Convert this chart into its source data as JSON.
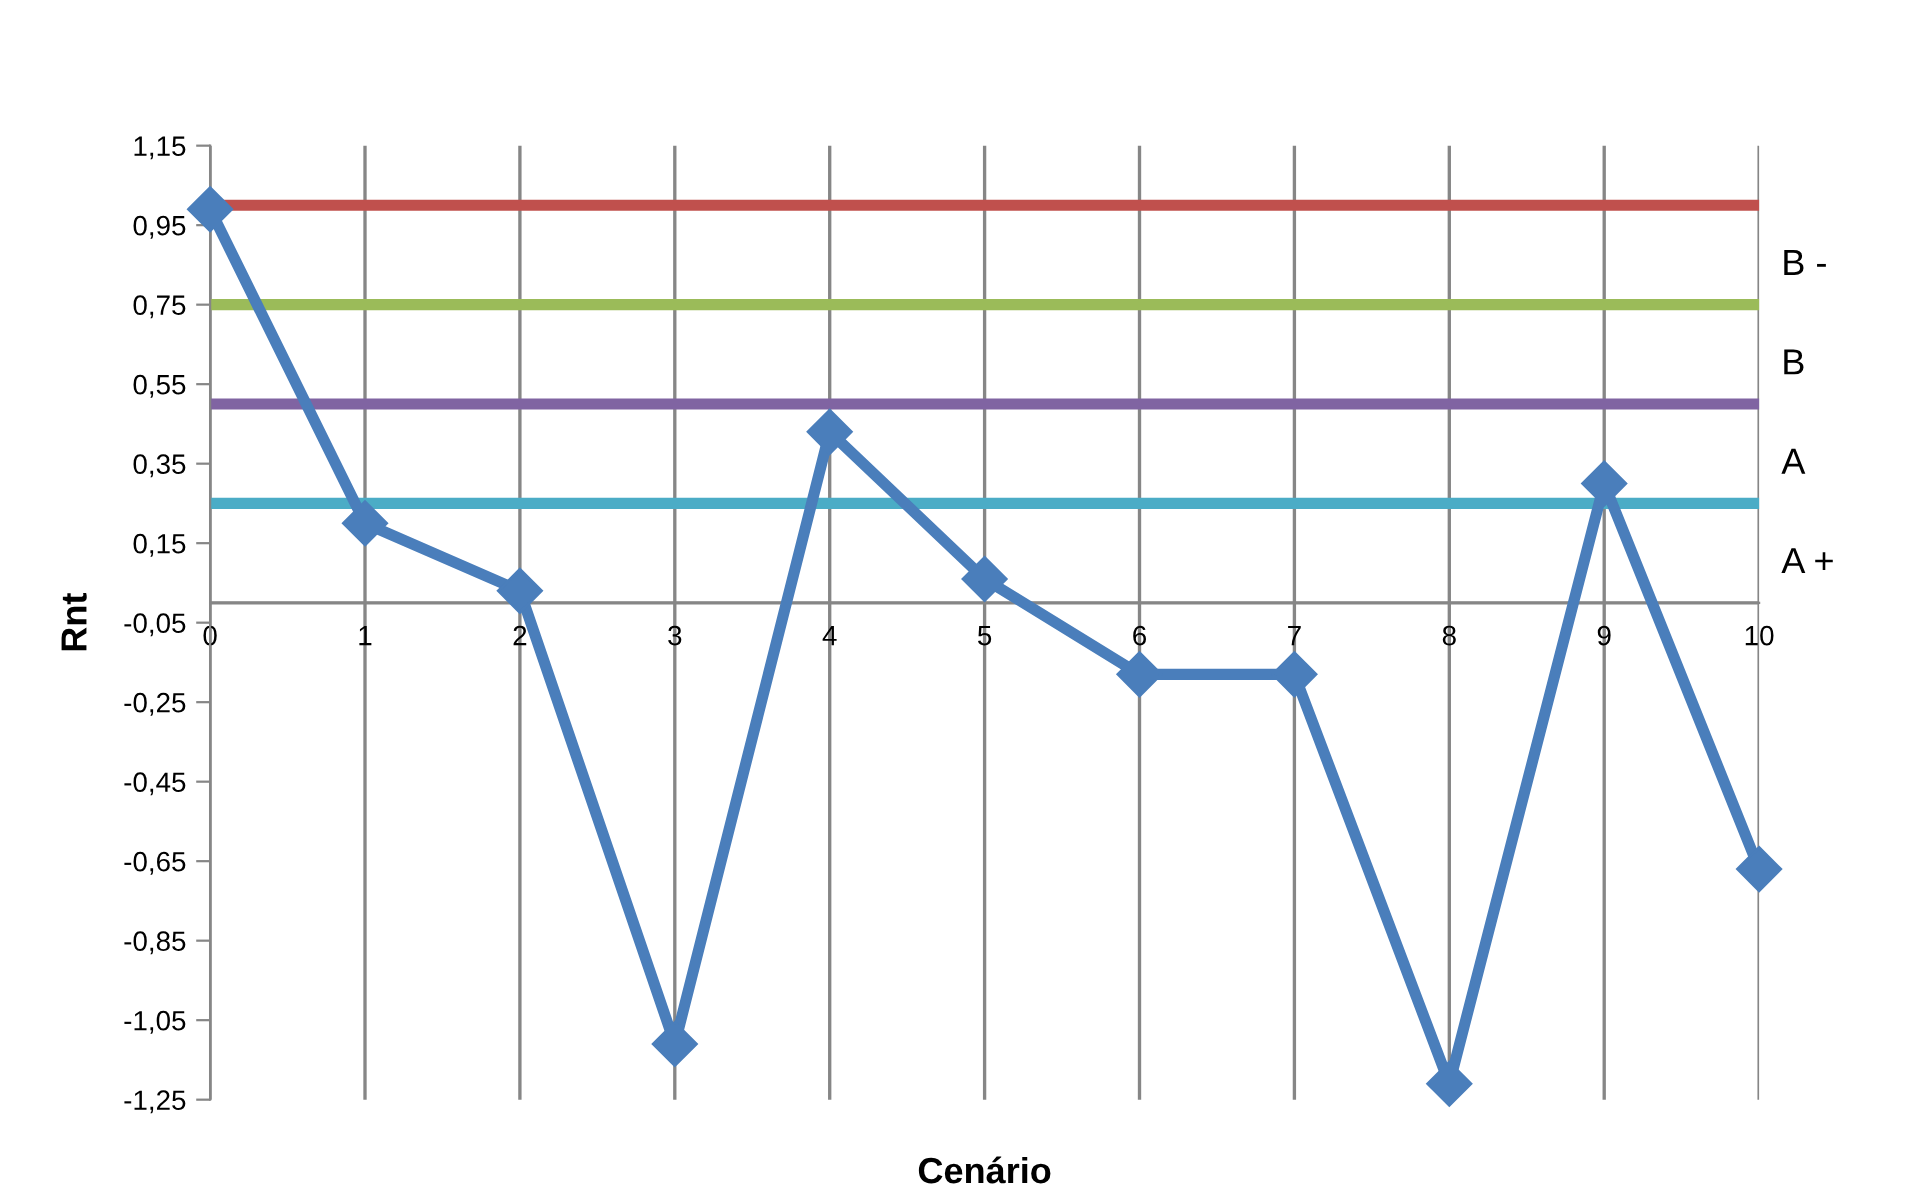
{
  "chart_data": {
    "type": "line",
    "xlabel": "Cenário",
    "ylabel": "Rnt",
    "x": [
      0,
      1,
      2,
      3,
      4,
      5,
      6,
      7,
      8,
      9,
      10
    ],
    "series": [
      {
        "color": "#4a7ebb",
        "values": [
          0.99,
          0.2,
          0.03,
          -1.11,
          0.43,
          0.06,
          -0.18,
          -0.18,
          -1.21,
          0.3,
          -0.67
        ]
      }
    ],
    "marker": "diamond",
    "line_style": "solid",
    "grid": "x",
    "xlim": [
      0,
      10
    ],
    "xticks": [
      0,
      1,
      2,
      3,
      4,
      5,
      6,
      7,
      8,
      9,
      10
    ],
    "ylim": [
      -1.25,
      1.15
    ],
    "yticks": [
      {
        "value": -1.25,
        "label": "-1,25"
      },
      {
        "value": -1.05,
        "label": "-1,05"
      },
      {
        "value": -0.85,
        "label": "-0,85"
      },
      {
        "value": -0.65,
        "label": "-0,65"
      },
      {
        "value": -0.45,
        "label": "-0,45"
      },
      {
        "value": -0.25,
        "label": "-0,25"
      },
      {
        "value": -0.05,
        "label": "-0,05"
      },
      {
        "value": 0.15,
        "label": "0,15"
      },
      {
        "value": 0.35,
        "label": "0,35"
      },
      {
        "value": 0.55,
        "label": "0,55"
      },
      {
        "value": 0.75,
        "label": "0,75"
      },
      {
        "value": 0.95,
        "label": "0,95"
      },
      {
        "value": 1.15,
        "label": "1,15"
      }
    ],
    "ref_lines": [
      {
        "axis": "y",
        "value": 1.0,
        "color": "#c0504d"
      },
      {
        "axis": "y",
        "value": 0.75,
        "label": "B -",
        "color": "#9bbb59"
      },
      {
        "axis": "y",
        "value": 0.5,
        "label": "B",
        "color": "#8064a2"
      },
      {
        "axis": "y",
        "value": 0.25,
        "label": "A",
        "color": "#4bacc6"
      },
      {
        "axis": "y",
        "value": 0,
        "label": "A +",
        "color": "#868686"
      }
    ]
  }
}
